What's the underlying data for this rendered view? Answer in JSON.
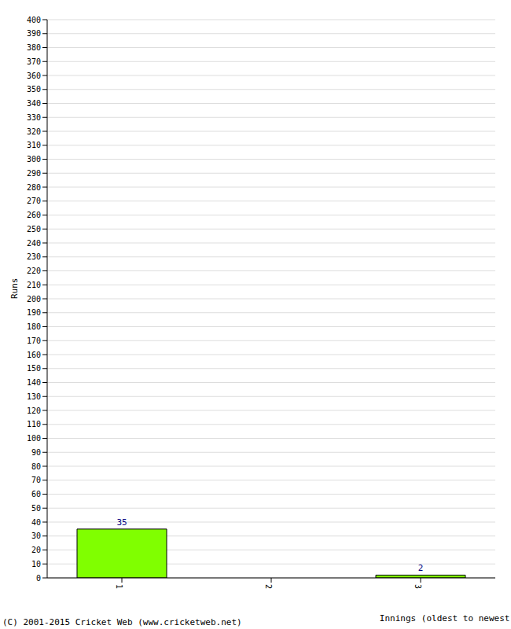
{
  "chart_data": {
    "type": "bar",
    "x_label": "Innings (oldest to newest)",
    "y_label": "Runs",
    "annotation": "(C) 2001-2015 Cricket Web (www.cricketweb.net)",
    "categories": [
      "1",
      "2",
      "3"
    ],
    "values": [
      35,
      0,
      2
    ],
    "color": "#80ff00",
    "ylim": [
      0,
      400
    ],
    "yticks": [
      0,
      10,
      20,
      30,
      40,
      50,
      60,
      70,
      80,
      90,
      100,
      110,
      120,
      130,
      140,
      150,
      160,
      170,
      180,
      190,
      200,
      210,
      220,
      230,
      240,
      250,
      260,
      270,
      280,
      290,
      300,
      310,
      320,
      330,
      340,
      350,
      360,
      370,
      380,
      390,
      400
    ],
    "grid": true,
    "data_labels": true
  }
}
